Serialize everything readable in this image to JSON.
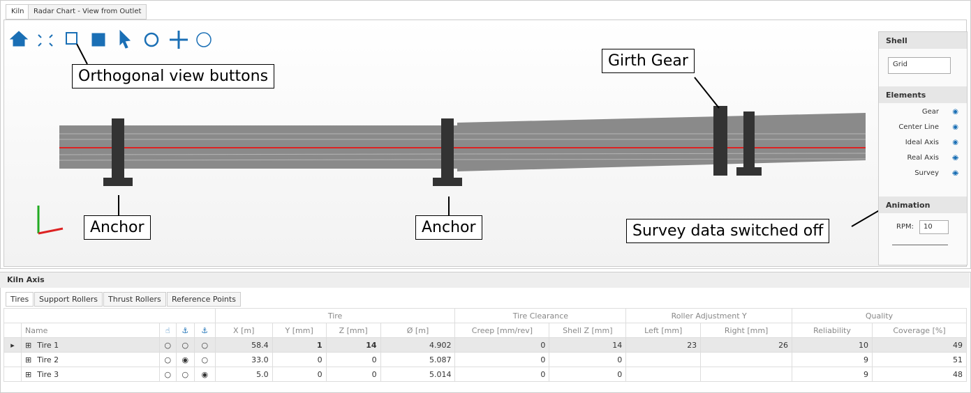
{
  "tabs": [
    "Kiln",
    "Radar Chart - View from Outlet"
  ],
  "callouts": {
    "orthogonal": "Orthogonal view buttons",
    "girth_gear": "Girth Gear",
    "anchor_left": "Anchor",
    "anchor_mid": "Anchor",
    "survey": "Survey data switched off"
  },
  "side_panel": {
    "shell_title": "Shell",
    "shell_mode": "Grid",
    "elements_title": "Elements",
    "elements": [
      {
        "label": "Gear",
        "visible": true
      },
      {
        "label": "Center Line",
        "visible": true
      },
      {
        "label": "Ideal Axis",
        "visible": true
      },
      {
        "label": "Real Axis",
        "visible": false
      },
      {
        "label": "Survey",
        "visible": false
      }
    ],
    "animation_title": "Animation",
    "rpm_label": "RPM:",
    "rpm": "10"
  },
  "panel": {
    "title": "Kiln Axis",
    "tabs": [
      "Tires",
      "Support Rollers",
      "Thrust Rollers",
      "Reference Points"
    ]
  },
  "table": {
    "groups": [
      "Tire",
      "Tire Clearance",
      "Roller Adjustment Y",
      "Quality"
    ],
    "columns": [
      "Name",
      "X [m]",
      "Y [mm]",
      "Z [mm]",
      "Ø [m]",
      "Creep [mm/rev]",
      "Shell Z [mm]",
      "Left [mm]",
      "Right [mm]",
      "Reliability",
      "Coverage [%]"
    ],
    "rows": [
      {
        "selected_option": null,
        "cells": [
          "Tire 1",
          "58.4",
          "1",
          "14",
          "4.902",
          "0",
          "14",
          "23",
          "26",
          "10",
          "49"
        ]
      },
      {
        "selected_option": 1,
        "cells": [
          "Tire 2",
          "33.0",
          "0",
          "0",
          "5.087",
          "0",
          "0",
          null,
          null,
          "9",
          "51"
        ]
      },
      {
        "selected_option": 2,
        "cells": [
          "Tire 3",
          "5.0",
          "0",
          "0",
          "5.014",
          "0",
          "0",
          null,
          null,
          "9",
          "48"
        ]
      }
    ]
  }
}
